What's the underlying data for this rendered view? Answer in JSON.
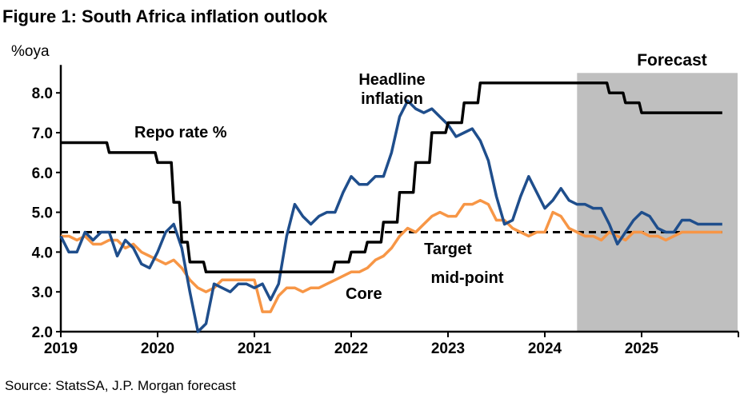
{
  "chart_data": {
    "type": "line",
    "title": "Figure 1: South Africa inflation outlook",
    "ylabel": "%oya",
    "source": "Source: StatsSA, J.P. Morgan forecast",
    "ylim": [
      2.0,
      8.5
    ],
    "yticks": [
      "2.0",
      "3.0",
      "4.0",
      "5.0",
      "6.0",
      "7.0",
      "8.0"
    ],
    "xticks": [
      "2019",
      "2020",
      "2021",
      "2022",
      "2023",
      "2024",
      "2025"
    ],
    "x_start": "2019-01",
    "x_end_axis": "2026-01",
    "grid": false,
    "forecast": {
      "label": "Forecast",
      "start": "2024-05",
      "end": "2025-12",
      "color": "#bfbfbf"
    },
    "target": {
      "label_line1": "Target",
      "label_line2": "mid-point",
      "value": 4.5
    },
    "series": [
      {
        "name": "Repo rate %",
        "color": "#000000",
        "values": [
          6.75,
          6.75,
          6.75,
          6.75,
          6.75,
          6.75,
          6.5,
          6.5,
          6.5,
          6.5,
          6.5,
          6.5,
          6.25,
          6.25,
          5.25,
          4.25,
          3.75,
          3.75,
          3.5,
          3.5,
          3.5,
          3.5,
          3.5,
          3.5,
          3.5,
          3.5,
          3.5,
          3.5,
          3.5,
          3.5,
          3.5,
          3.5,
          3.5,
          3.5,
          3.75,
          3.75,
          4.0,
          4.0,
          4.25,
          4.25,
          4.75,
          4.75,
          5.5,
          5.5,
          6.25,
          6.25,
          7.0,
          7.0,
          7.25,
          7.25,
          7.75,
          7.75,
          8.25,
          8.25,
          8.25,
          8.25,
          8.25,
          8.25,
          8.25,
          8.25,
          8.25,
          8.25,
          8.25,
          8.25,
          8.25,
          8.25,
          8.25,
          8.25,
          8.0,
          8.0,
          7.75,
          7.75,
          7.5,
          7.5,
          7.5,
          7.5,
          7.5,
          7.5,
          7.5,
          7.5,
          7.5,
          7.5,
          7.5
        ]
      },
      {
        "name": "Headline inflation",
        "label_line1": "Headline",
        "label_line2": "inflation",
        "color": "#1f4e8c",
        "values": [
          4.4,
          4.0,
          4.0,
          4.5,
          4.3,
          4.5,
          4.5,
          3.9,
          4.3,
          4.1,
          3.7,
          3.6,
          4.0,
          4.5,
          4.7,
          4.1,
          3.0,
          2.0,
          2.2,
          3.2,
          3.1,
          3.0,
          3.2,
          3.2,
          3.1,
          3.2,
          2.8,
          3.2,
          4.4,
          5.2,
          4.9,
          4.7,
          4.9,
          5.0,
          5.0,
          5.5,
          5.9,
          5.7,
          5.7,
          5.9,
          5.9,
          6.5,
          7.4,
          7.8,
          7.6,
          7.5,
          7.6,
          7.4,
          7.2,
          6.9,
          7.0,
          7.1,
          6.8,
          6.3,
          5.4,
          4.7,
          4.8,
          5.4,
          5.9,
          5.5,
          5.1,
          5.3,
          5.6,
          5.3,
          5.2,
          5.2,
          5.1,
          5.1,
          4.7,
          4.2,
          4.5,
          4.8,
          5.0,
          4.9,
          4.6,
          4.5,
          4.5,
          4.8,
          4.8,
          4.7,
          4.7,
          4.7,
          4.7
        ]
      },
      {
        "name": "Core",
        "color": "#f79646",
        "values": [
          4.4,
          4.4,
          4.3,
          4.4,
          4.2,
          4.2,
          4.3,
          4.3,
          4.1,
          4.2,
          4.0,
          3.9,
          3.8,
          3.7,
          3.8,
          3.6,
          3.3,
          3.1,
          3.0,
          3.1,
          3.3,
          3.3,
          3.3,
          3.3,
          3.3,
          2.5,
          2.5,
          2.9,
          3.1,
          3.1,
          3.0,
          3.1,
          3.1,
          3.2,
          3.3,
          3.4,
          3.5,
          3.5,
          3.6,
          3.8,
          3.9,
          4.1,
          4.4,
          4.6,
          4.5,
          4.7,
          4.9,
          5.0,
          4.9,
          4.9,
          5.2,
          5.2,
          5.3,
          5.2,
          4.8,
          4.8,
          4.6,
          4.5,
          4.4,
          4.5,
          4.5,
          5.0,
          4.9,
          4.6,
          4.5,
          4.4,
          4.4,
          4.3,
          4.5,
          4.4,
          4.3,
          4.5,
          4.5,
          4.4,
          4.4,
          4.3,
          4.4,
          4.5,
          4.5,
          4.5,
          4.5,
          4.5,
          4.5
        ]
      }
    ]
  }
}
